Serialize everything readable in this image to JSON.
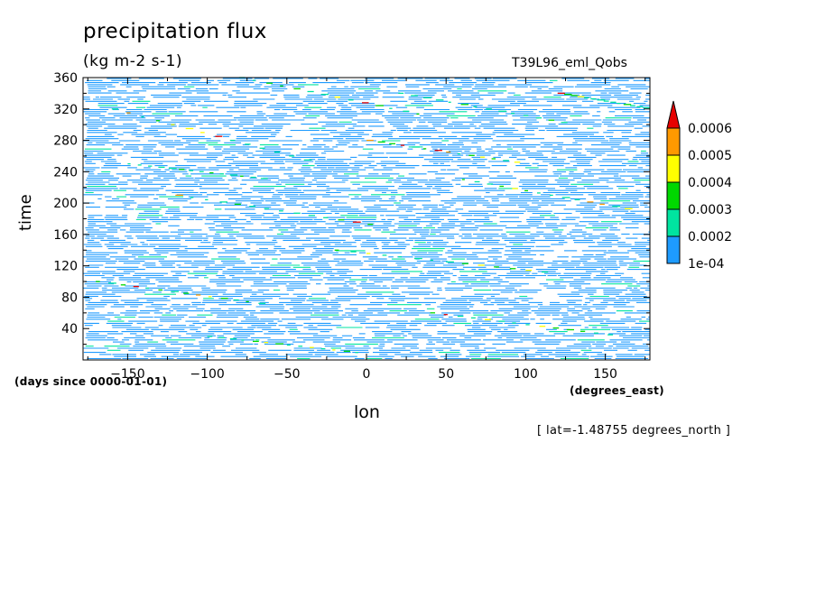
{
  "chart_data": {
    "type": "heatmap",
    "title": "precipitation flux",
    "units": "(kg m-2 s-1)",
    "run_label": "T39L96_eml_Qobs",
    "xlabel": "lon",
    "x_units": "(degrees_east)",
    "ylabel": "time",
    "y_units": "(days since 0000-01-01)",
    "annotation": "[ lat=-1.48755 degrees_north ]",
    "xlim": [
      -178,
      178
    ],
    "ylim": [
      0,
      360
    ],
    "x_ticks": [
      -150,
      -100,
      -50,
      0,
      50,
      100,
      150
    ],
    "y_ticks": [
      40,
      80,
      120,
      160,
      200,
      240,
      280,
      320,
      360
    ],
    "colorbar": {
      "levels": [
        0.0001,
        0.0002,
        0.0003,
        0.0004,
        0.0005,
        0.0006
      ],
      "labels": [
        "1e-04",
        "0.0002",
        "0.0003",
        "0.0004",
        "0.0005",
        "0.0006"
      ],
      "colors": [
        "#1e9bff",
        "#00e4a0",
        "#00d800",
        "#ffff00",
        "#ff9900",
        "#e60000"
      ],
      "extend": "max"
    },
    "pattern": "dense horizontal streaks of 1e-04 to 0.0002 across all longitudes and times, with sparse diagonal (westward/eastward propagating) streaks of 0.0002 to 0.0006"
  },
  "colors": {
    "background": "#ffffff",
    "axis": "#000000"
  }
}
